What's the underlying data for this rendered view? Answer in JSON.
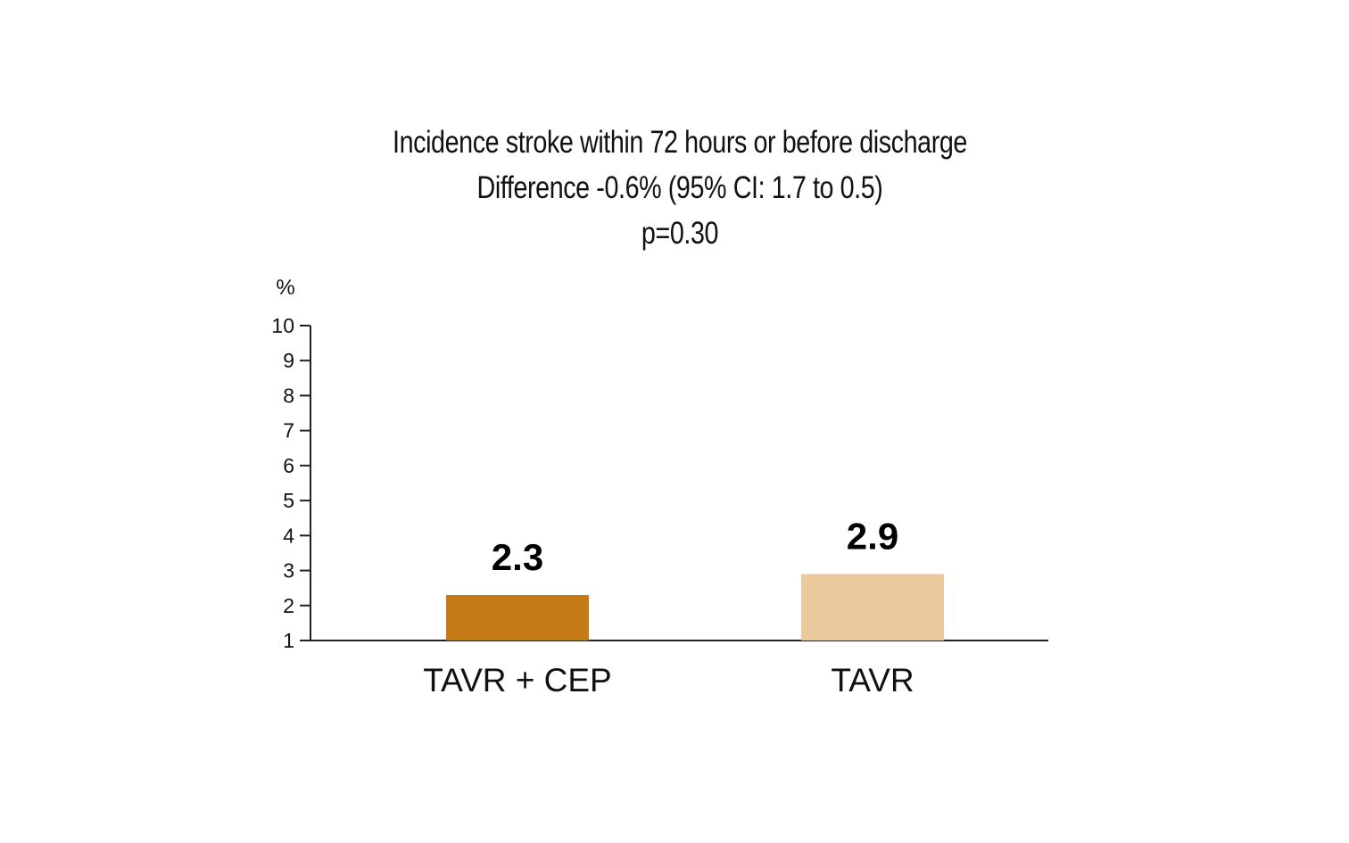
{
  "chart_data": {
    "type": "bar",
    "title": "Incidence stroke within 72 hours or before discharge",
    "subtitle": "Difference -0.6% (95% CI: 1.7 to 0.5)",
    "subtitle2": "p=0.30",
    "ylabel": "%",
    "xlabel": "",
    "ylim": [
      1,
      10
    ],
    "yticks": [
      "1",
      "2",
      "3",
      "4",
      "5",
      "6",
      "7",
      "8",
      "9",
      "10"
    ],
    "categories": [
      "TAVR + CEP",
      "TAVR"
    ],
    "values": [
      2.3,
      2.9
    ],
    "value_labels": [
      "2.3",
      "2.9"
    ],
    "colors": [
      "#c57a16",
      "#ebcb9d"
    ],
    "grid": false,
    "legend": "none"
  }
}
